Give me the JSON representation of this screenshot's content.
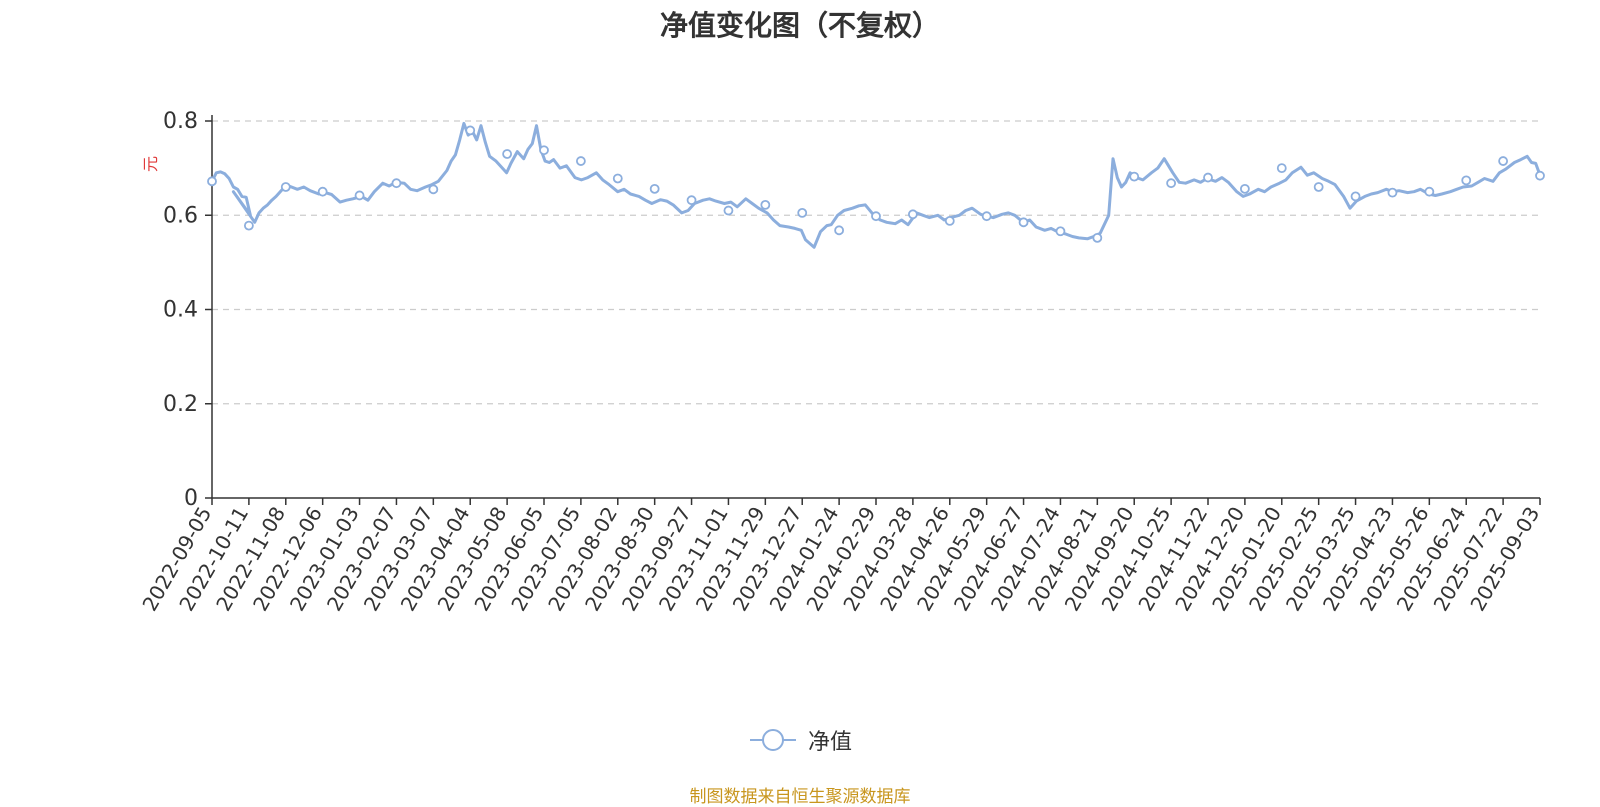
{
  "colors": {
    "line": "#8caedd",
    "axis": "#333333",
    "grid": "#cccccc",
    "ylabel": "#e03a3a",
    "source": "#c8961e",
    "title": "#333333"
  },
  "legend_marker_icon": "circle-icon",
  "chart_data": {
    "type": "line",
    "title": "净值变化图（不复权）",
    "ylabel": "元",
    "xlabel": "",
    "ylim": [
      0,
      0.8
    ],
    "yticks": [
      0,
      0.2,
      0.4,
      0.6,
      0.8
    ],
    "ytick_labels": [
      "0",
      "0.2",
      "0.4",
      "0.6",
      "0.8"
    ],
    "grid": true,
    "legend_position": "bottom",
    "source": "制图数据来自恒生聚源数据库",
    "x_tick_labels": [
      "2022-09-05",
      "2022-10-11",
      "2022-11-08",
      "2022-12-06",
      "2023-01-03",
      "2023-02-07",
      "2023-03-07",
      "2023-04-04",
      "2023-05-08",
      "2023-06-05",
      "2023-07-05",
      "2023-08-02",
      "2023-08-30",
      "2023-09-27",
      "2023-11-01",
      "2023-11-29",
      "2023-12-27",
      "2024-01-24",
      "2024-02-29",
      "2024-03-28",
      "2024-04-26",
      "2024-05-29",
      "2024-06-27",
      "2024-07-24",
      "2024-08-21",
      "2024-09-20",
      "2024-10-25",
      "2024-11-22",
      "2024-12-20",
      "2025-01-20",
      "2025-02-25",
      "2025-03-25",
      "2025-04-23",
      "2025-05-26",
      "2025-06-24",
      "2025-07-22",
      "2025-09-03"
    ],
    "series": [
      {
        "name": "净值",
        "points": [
          [
            0,
            0.672
          ],
          [
            0.2,
            0.69
          ],
          [
            0.4,
            0.692
          ],
          [
            0.6,
            0.688
          ],
          [
            0.8,
            0.678
          ],
          [
            1.0,
            0.66
          ],
          [
            1.2,
            0.655
          ],
          [
            1.4,
            0.64
          ],
          [
            1.6,
            0.638
          ],
          [
            1.8,
            0.6
          ],
          [
            1.0,
            0.65
          ],
          [
            2.0,
            0.585
          ],
          [
            2.2,
            0.605
          ],
          [
            2.4,
            0.615
          ],
          [
            2.6,
            0.622
          ],
          [
            2.8,
            0.632
          ],
          [
            3.0,
            0.64
          ],
          [
            3.3,
            0.655
          ],
          [
            3.6,
            0.662
          ],
          [
            4.0,
            0.655
          ],
          [
            4.3,
            0.66
          ],
          [
            4.6,
            0.652
          ],
          [
            5.0,
            0.645
          ],
          [
            5.3,
            0.648
          ],
          [
            5.6,
            0.644
          ],
          [
            6.0,
            0.628
          ],
          [
            6.3,
            0.632
          ],
          [
            6.6,
            0.635
          ],
          [
            7.0,
            0.64
          ],
          [
            7.3,
            0.632
          ],
          [
            7.6,
            0.65
          ],
          [
            8.0,
            0.668
          ],
          [
            8.3,
            0.662
          ],
          [
            8.6,
            0.67
          ],
          [
            9.0,
            0.668
          ],
          [
            9.3,
            0.655
          ],
          [
            9.6,
            0.652
          ],
          [
            10.0,
            0.66
          ],
          [
            10.3,
            0.665
          ],
          [
            10.6,
            0.672
          ],
          [
            11.0,
            0.695
          ],
          [
            11.2,
            0.715
          ],
          [
            11.4,
            0.728
          ],
          [
            11.6,
            0.76
          ],
          [
            11.8,
            0.795
          ],
          [
            12.0,
            0.77
          ],
          [
            12.2,
            0.778
          ],
          [
            12.4,
            0.76
          ],
          [
            12.6,
            0.79
          ],
          [
            12.8,
            0.755
          ],
          [
            13.0,
            0.725
          ],
          [
            13.3,
            0.715
          ],
          [
            13.6,
            0.7
          ],
          [
            13.8,
            0.69
          ],
          [
            14.0,
            0.71
          ],
          [
            14.3,
            0.735
          ],
          [
            14.6,
            0.72
          ],
          [
            14.8,
            0.74
          ],
          [
            15.0,
            0.752
          ],
          [
            15.2,
            0.79
          ],
          [
            15.4,
            0.74
          ],
          [
            15.6,
            0.715
          ],
          [
            15.8,
            0.712
          ],
          [
            16.0,
            0.718
          ],
          [
            16.3,
            0.7
          ],
          [
            16.6,
            0.705
          ],
          [
            17.0,
            0.68
          ],
          [
            17.3,
            0.675
          ],
          [
            17.6,
            0.68
          ],
          [
            18.0,
            0.69
          ],
          [
            18.3,
            0.675
          ],
          [
            18.6,
            0.665
          ],
          [
            19.0,
            0.65
          ],
          [
            19.3,
            0.655
          ],
          [
            19.6,
            0.645
          ],
          [
            20.0,
            0.64
          ],
          [
            20.3,
            0.632
          ],
          [
            20.6,
            0.625
          ],
          [
            21.0,
            0.633
          ],
          [
            21.3,
            0.63
          ],
          [
            21.6,
            0.622
          ],
          [
            22.0,
            0.605
          ],
          [
            22.3,
            0.61
          ],
          [
            22.6,
            0.625
          ],
          [
            23.0,
            0.632
          ],
          [
            23.3,
            0.635
          ],
          [
            23.6,
            0.63
          ],
          [
            24.0,
            0.625
          ],
          [
            24.3,
            0.628
          ],
          [
            24.6,
            0.618
          ],
          [
            25.0,
            0.635
          ],
          [
            25.3,
            0.625
          ],
          [
            25.6,
            0.615
          ],
          [
            26.0,
            0.605
          ],
          [
            26.3,
            0.59
          ],
          [
            26.6,
            0.578
          ],
          [
            27.0,
            0.575
          ],
          [
            27.3,
            0.572
          ],
          [
            27.6,
            0.568
          ],
          [
            27.8,
            0.548
          ],
          [
            28.0,
            0.54
          ],
          [
            28.2,
            0.532
          ],
          [
            28.5,
            0.565
          ],
          [
            28.8,
            0.578
          ],
          [
            29.0,
            0.58
          ],
          [
            29.3,
            0.6
          ],
          [
            29.6,
            0.61
          ],
          [
            30.0,
            0.615
          ],
          [
            30.3,
            0.62
          ],
          [
            30.6,
            0.622
          ],
          [
            31.0,
            0.6
          ],
          [
            31.3,
            0.59
          ],
          [
            31.6,
            0.585
          ],
          [
            32.0,
            0.582
          ],
          [
            32.3,
            0.59
          ],
          [
            32.6,
            0.58
          ],
          [
            33.0,
            0.605
          ],
          [
            33.3,
            0.6
          ],
          [
            33.6,
            0.595
          ],
          [
            34.0,
            0.6
          ],
          [
            34.3,
            0.59
          ],
          [
            34.6,
            0.595
          ],
          [
            35.0,
            0.6
          ],
          [
            35.3,
            0.61
          ],
          [
            35.6,
            0.615
          ],
          [
            36.0,
            0.602
          ],
          [
            36.3,
            0.598
          ],
          [
            36.6,
            0.595
          ],
          [
            37.0,
            0.602
          ],
          [
            37.3,
            0.605
          ],
          [
            37.6,
            0.6
          ],
          [
            38.0,
            0.585
          ],
          [
            38.3,
            0.59
          ],
          [
            38.6,
            0.575
          ],
          [
            39.0,
            0.568
          ],
          [
            39.3,
            0.572
          ],
          [
            39.6,
            0.565
          ],
          [
            40.0,
            0.56
          ],
          [
            40.3,
            0.555
          ],
          [
            40.6,
            0.552
          ],
          [
            41.0,
            0.55
          ],
          [
            41.3,
            0.555
          ],
          [
            41.6,
            0.562
          ],
          [
            42.0,
            0.6
          ],
          [
            42.2,
            0.72
          ],
          [
            42.4,
            0.68
          ],
          [
            42.6,
            0.66
          ],
          [
            42.8,
            0.67
          ],
          [
            43.0,
            0.69
          ],
          [
            43.3,
            0.68
          ],
          [
            43.6,
            0.675
          ],
          [
            44.0,
            0.69
          ],
          [
            44.3,
            0.7
          ],
          [
            44.6,
            0.72
          ],
          [
            45.0,
            0.69
          ],
          [
            45.3,
            0.67
          ],
          [
            45.6,
            0.668
          ],
          [
            46.0,
            0.675
          ],
          [
            46.3,
            0.67
          ],
          [
            46.6,
            0.678
          ],
          [
            47.0,
            0.672
          ],
          [
            47.3,
            0.68
          ],
          [
            47.6,
            0.67
          ],
          [
            48.0,
            0.65
          ],
          [
            48.3,
            0.64
          ],
          [
            48.6,
            0.645
          ],
          [
            49.0,
            0.655
          ],
          [
            49.3,
            0.65
          ],
          [
            49.6,
            0.66
          ],
          [
            50.0,
            0.668
          ],
          [
            50.3,
            0.675
          ],
          [
            50.6,
            0.69
          ],
          [
            51.0,
            0.702
          ],
          [
            51.3,
            0.685
          ],
          [
            51.6,
            0.69
          ],
          [
            52.0,
            0.678
          ],
          [
            52.3,
            0.672
          ],
          [
            52.6,
            0.665
          ],
          [
            53.0,
            0.64
          ],
          [
            53.3,
            0.615
          ],
          [
            53.6,
            0.63
          ],
          [
            54.0,
            0.64
          ],
          [
            54.3,
            0.645
          ],
          [
            54.6,
            0.648
          ],
          [
            55.0,
            0.655
          ],
          [
            55.3,
            0.65
          ],
          [
            55.6,
            0.652
          ],
          [
            56.0,
            0.648
          ],
          [
            56.3,
            0.65
          ],
          [
            56.6,
            0.655
          ],
          [
            57.0,
            0.645
          ],
          [
            57.3,
            0.642
          ],
          [
            57.6,
            0.645
          ],
          [
            58.0,
            0.65
          ],
          [
            58.3,
            0.655
          ],
          [
            58.6,
            0.66
          ],
          [
            59.0,
            0.662
          ],
          [
            59.3,
            0.67
          ],
          [
            59.6,
            0.678
          ],
          [
            60.0,
            0.672
          ],
          [
            60.3,
            0.69
          ],
          [
            60.6,
            0.698
          ],
          [
            61.0,
            0.712
          ],
          [
            61.3,
            0.718
          ],
          [
            61.6,
            0.725
          ],
          [
            61.8,
            0.712
          ],
          [
            62.0,
            0.71
          ],
          [
            62.2,
            0.685
          ]
        ],
        "markers": [
          [
            0,
            0.672
          ],
          [
            2.0,
            0.578
          ],
          [
            4.0,
            0.66
          ],
          [
            6.0,
            0.65
          ],
          [
            8.0,
            0.642
          ],
          [
            10.0,
            0.668
          ],
          [
            12.0,
            0.655
          ],
          [
            14.0,
            0.78
          ],
          [
            16.0,
            0.73
          ],
          [
            18.0,
            0.738
          ],
          [
            20.0,
            0.715
          ],
          [
            22.0,
            0.678
          ],
          [
            24.0,
            0.656
          ],
          [
            26.0,
            0.632
          ],
          [
            28.0,
            0.61
          ],
          [
            30.0,
            0.622
          ],
          [
            32.0,
            0.605
          ],
          [
            34.0,
            0.568
          ],
          [
            36.0,
            0.598
          ],
          [
            38.0,
            0.602
          ],
          [
            40.0,
            0.588
          ],
          [
            42.0,
            0.598
          ],
          [
            44.0,
            0.585
          ],
          [
            46.0,
            0.566
          ],
          [
            48.0,
            0.552
          ],
          [
            50.0,
            0.682
          ],
          [
            52.0,
            0.668
          ],
          [
            54.0,
            0.68
          ],
          [
            56.0,
            0.656
          ],
          [
            58.0,
            0.7
          ],
          [
            60.0,
            0.66
          ],
          [
            62.0,
            0.64
          ],
          [
            64.0,
            0.648
          ],
          [
            66.0,
            0.65
          ],
          [
            68.0,
            0.674
          ],
          [
            70.0,
            0.715
          ],
          [
            72.0,
            0.684
          ]
        ],
        "x_units": "tick_index"
      }
    ]
  }
}
